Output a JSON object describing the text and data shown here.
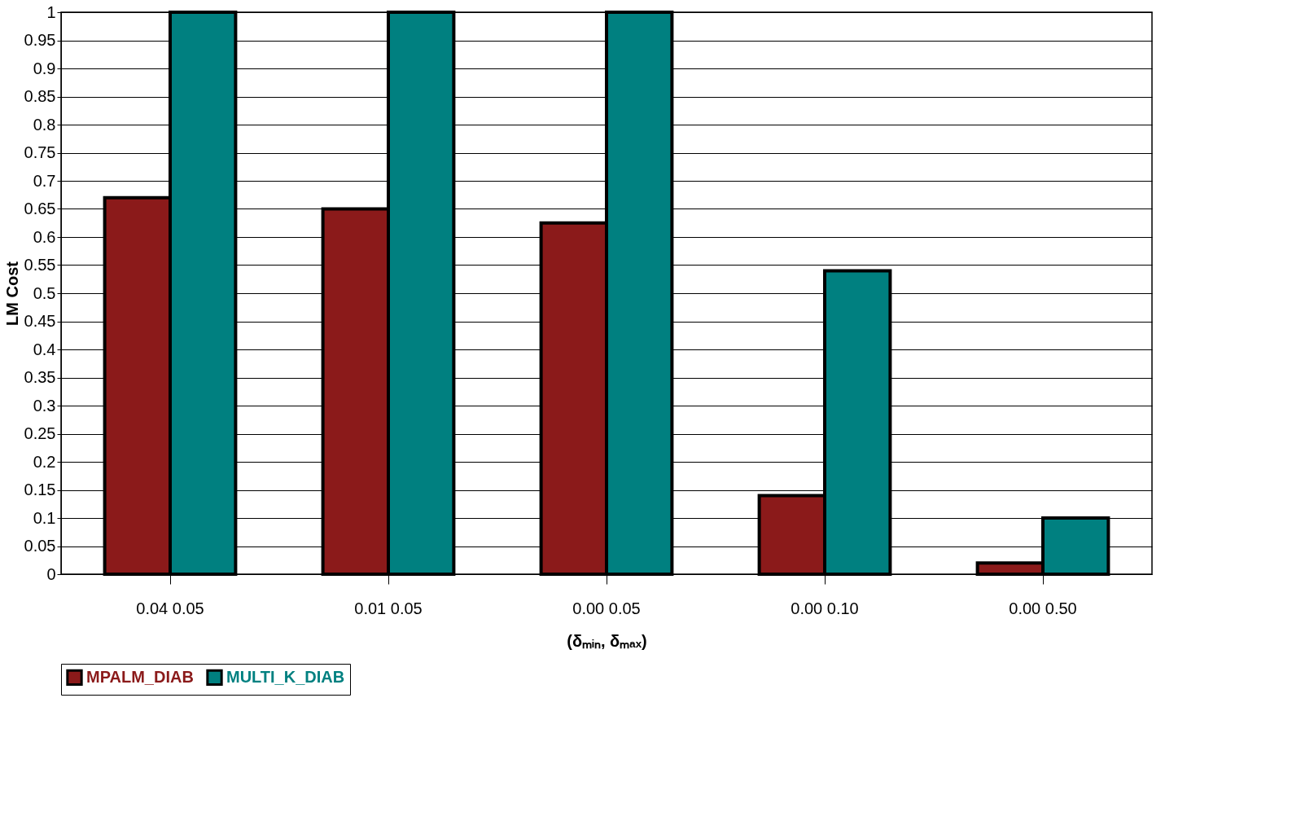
{
  "chart_data": {
    "type": "bar",
    "xlabel": "(δₘᵢₙ, δₘₐₓ)",
    "ylabel": "LM Cost",
    "categories": [
      "0.04 0.05",
      "0.01 0.05",
      "0.00 0.05",
      "0.00 0.10",
      "0.00 0.50"
    ],
    "series": [
      {
        "name": "MPALM_DIAB",
        "color": "#8b1a1a",
        "values": [
          0.67,
          0.65,
          0.625,
          0.14,
          0.02
        ]
      },
      {
        "name": "MULTI_K_DIAB",
        "color": "#008080",
        "values": [
          1,
          1,
          1,
          0.54,
          0.1
        ]
      }
    ],
    "ylim": [
      0,
      1
    ],
    "yticks": [
      0,
      0.05,
      0.1,
      0.15,
      0.2,
      0.25,
      0.3,
      0.35,
      0.4,
      0.45,
      0.5,
      0.55,
      0.6,
      0.65,
      0.7,
      0.75,
      0.8,
      0.85,
      0.9,
      0.95,
      1
    ],
    "grid": "y",
    "legend": "bottom"
  }
}
